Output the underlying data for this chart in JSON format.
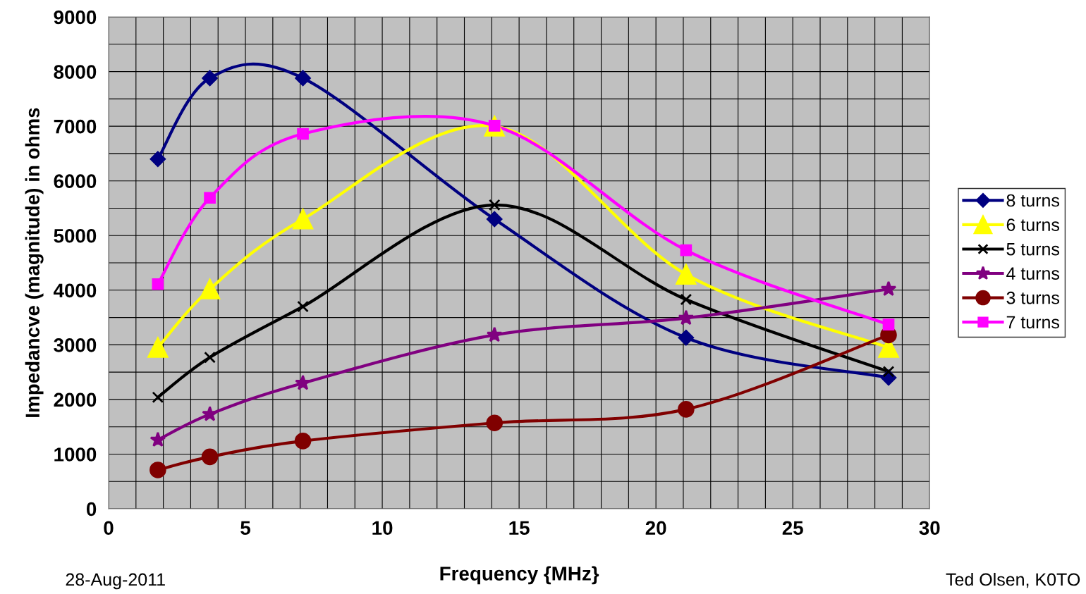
{
  "chart_data": {
    "type": "line",
    "xlabel": "Frequency {MHz}",
    "ylabel": "Impedancve (magnitude) in ohms",
    "x": [
      1.8,
      3.7,
      7.1,
      14.1,
      21.1,
      28.5
    ],
    "series": [
      {
        "name": "8 turns",
        "color": "#000080",
        "marker": "diamond",
        "values": [
          6400,
          7880,
          7880,
          5300,
          3130,
          2400
        ]
      },
      {
        "name": "6 turns",
        "color": "#ffff00",
        "marker": "triangle",
        "values": [
          2950,
          4020,
          5300,
          7000,
          4290,
          2950
        ]
      },
      {
        "name": "5 turns",
        "color": "#000000",
        "marker": "cross",
        "values": [
          2040,
          2770,
          3700,
          5560,
          3830,
          2510
        ]
      },
      {
        "name": "4 turns",
        "color": "#800080",
        "marker": "star",
        "values": [
          1260,
          1730,
          2300,
          3180,
          3490,
          4020
        ]
      },
      {
        "name": "3 turns",
        "color": "#800000",
        "marker": "circle",
        "values": [
          710,
          950,
          1240,
          1570,
          1820,
          3180
        ]
      },
      {
        "name": "7 turns",
        "color": "#ff00ff",
        "marker": "square",
        "values": [
          4110,
          5690,
          6860,
          7010,
          4730,
          3370
        ]
      }
    ],
    "xlim": [
      0,
      30
    ],
    "xticks": [
      0,
      {
        "value": 1,
        "label": null
      },
      {
        "value": 2,
        "label": null
      },
      {
        "value": 3,
        "label": null
      },
      {
        "value": 4,
        "label": null
      },
      5,
      {
        "value": 6,
        "label": null
      },
      {
        "value": 7,
        "label": null
      },
      {
        "value": 8,
        "label": null
      },
      {
        "value": 9,
        "label": null
      },
      10,
      {
        "value": 11,
        "label": null
      },
      {
        "value": 12,
        "label": null
      },
      {
        "value": 13,
        "label": null
      },
      {
        "value": 14,
        "label": null
      },
      15,
      {
        "value": 16,
        "label": null
      },
      {
        "value": 17,
        "label": null
      },
      {
        "value": 18,
        "label": null
      },
      {
        "value": 19,
        "label": null
      },
      20,
      {
        "value": 21,
        "label": null
      },
      {
        "value": 22,
        "label": null
      },
      {
        "value": 23,
        "label": null
      },
      {
        "value": 24,
        "label": null
      },
      25,
      {
        "value": 26,
        "label": null
      },
      {
        "value": 27,
        "label": null
      },
      {
        "value": 28,
        "label": null
      },
      {
        "value": 29,
        "label": null
      },
      30
    ],
    "ylim": [
      0,
      9000
    ],
    "yticks": [
      0,
      {
        "value": 500,
        "label": null
      },
      1000,
      {
        "value": 1500,
        "label": null
      },
      2000,
      {
        "value": 2500,
        "label": null
      },
      3000,
      {
        "value": 3500,
        "label": null
      },
      4000,
      {
        "value": 4500,
        "label": null
      },
      5000,
      {
        "value": 5500,
        "label": null
      },
      6000,
      {
        "value": 6500,
        "label": null
      },
      7000,
      {
        "value": 7500,
        "label": null
      },
      8000,
      {
        "value": 8500,
        "label": null
      },
      9000
    ],
    "grid": true,
    "legend": "right",
    "line_style": "solid",
    "annotations": [
      "28-Aug-2011",
      "Ted Olsen, K0TO"
    ]
  }
}
